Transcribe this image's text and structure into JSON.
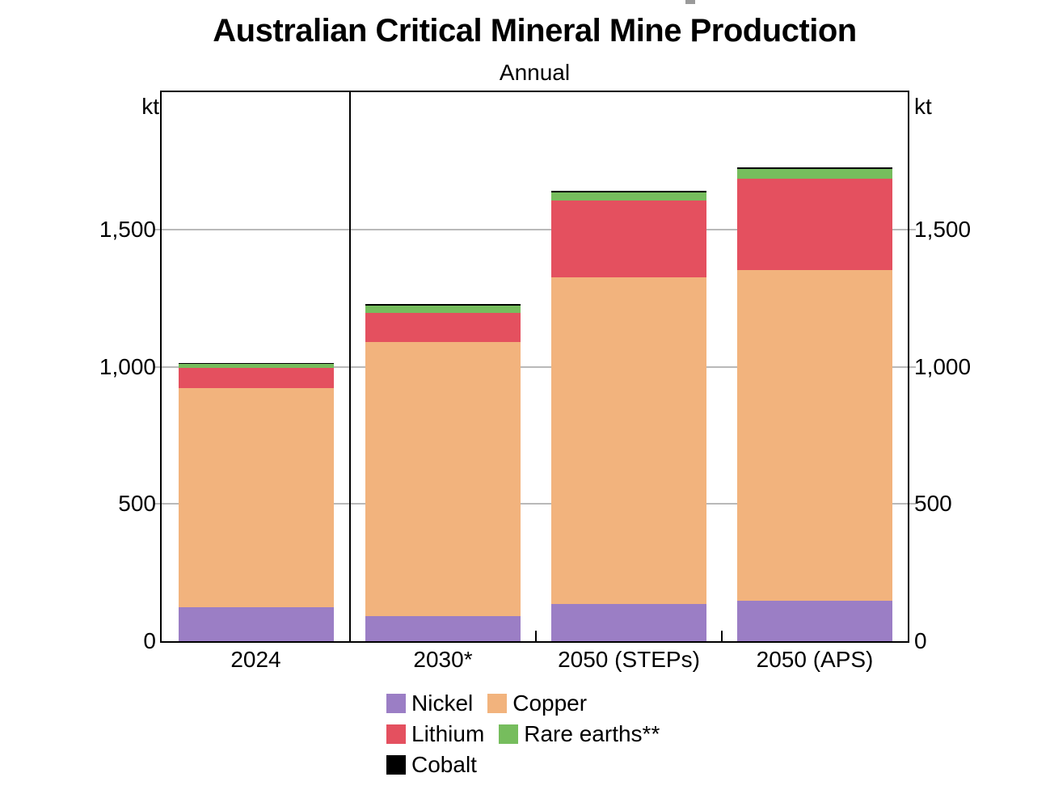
{
  "header": {
    "title": "Australian Critical Mineral Mine Production",
    "subtitle": "Annual"
  },
  "axes": {
    "left_unit": "kt",
    "right_unit": "kt"
  },
  "chart_data": {
    "type": "bar",
    "stacked": true,
    "title": "Australian Critical Mineral Mine Production",
    "subtitle": "Annual",
    "unit": "kt",
    "categories": [
      "2024",
      "2030*",
      "2050 (STEPs)",
      "2050 (APS)"
    ],
    "series": [
      {
        "name": "Nickel",
        "color": "#9b7ec5",
        "values": [
          125,
          90,
          135,
          148
        ]
      },
      {
        "name": "Copper",
        "color": "#f2b37d",
        "values": [
          798,
          1000,
          1190,
          1205
        ]
      },
      {
        "name": "Lithium",
        "color": "#e4505f",
        "values": [
          74,
          105,
          280,
          333
        ]
      },
      {
        "name": "Rare earths**",
        "color": "#76bd5d",
        "values": [
          12,
          27,
          31,
          33
        ]
      },
      {
        "name": "Cobalt",
        "color": "#000000",
        "values": [
          4,
          5,
          5,
          6
        ]
      }
    ],
    "totals": [
      1013,
      1227,
      1641,
      1725
    ],
    "ylim": [
      0,
      2000
    ],
    "y_ticks": [
      {
        "value": 0,
        "label": "0"
      },
      {
        "value": 500,
        "label": "500"
      },
      {
        "value": 1000,
        "label": "1,000"
      },
      {
        "value": 1500,
        "label": "1,500"
      }
    ],
    "gridlines": true,
    "panel_divider_after_category_index": 0,
    "legend_position": "bottom",
    "legend_rows": [
      [
        "Nickel",
        "Copper"
      ],
      [
        "Lithium",
        "Rare earths**"
      ],
      [
        "Cobalt"
      ]
    ]
  }
}
